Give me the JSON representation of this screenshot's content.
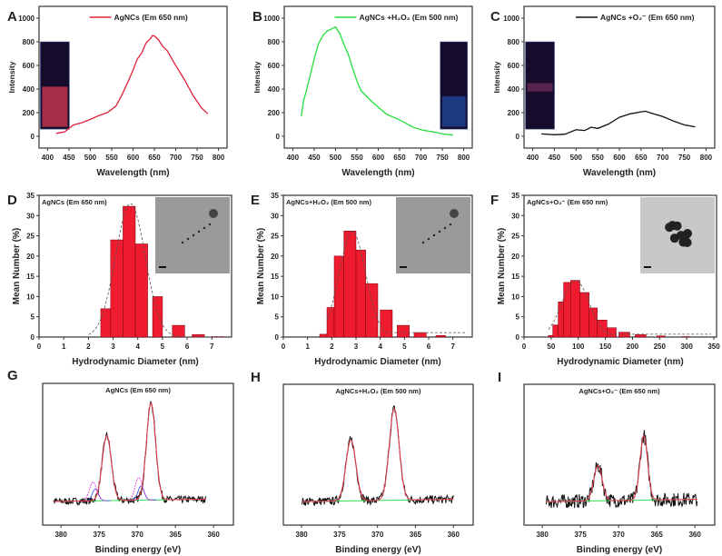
{
  "colors": {
    "red_curve": "#e0203a",
    "green_curve": "#22e03a",
    "black_curve": "#111111",
    "bar_fill": "#ee1c2e",
    "fit_red": "#e04050",
    "baseline_green": "#33dd55",
    "component_blue": "#3344dd",
    "component_magenta": "#dd33dd"
  },
  "chart_data": [
    {
      "panel": "A",
      "type": "line",
      "legend": "AgNCs (Em 650 nm)",
      "legend_placement": "top-center",
      "xlabel": "Wavelength (nm)",
      "ylabel": "Intensity",
      "xlim": [
        380,
        820
      ],
      "ylim": [
        -100,
        1100
      ],
      "xticks": [
        "400",
        "450",
        "500",
        "550",
        "600",
        "650",
        "700",
        "750",
        "800"
      ],
      "yticks": [
        "0",
        "200",
        "400",
        "600",
        "800",
        "1000"
      ],
      "color": "#e0203a",
      "inset": "red-vial-photo",
      "x": [
        420,
        440,
        460,
        480,
        500,
        520,
        540,
        560,
        575,
        590,
        600,
        610,
        620,
        630,
        640,
        645,
        650,
        660,
        670,
        680,
        700,
        720,
        740,
        760,
        775
      ],
      "y": [
        25,
        50,
        85,
        120,
        150,
        170,
        200,
        260,
        350,
        470,
        560,
        650,
        700,
        780,
        830,
        855,
        845,
        810,
        770,
        720,
        600,
        470,
        340,
        250,
        190
      ]
    },
    {
      "panel": "B",
      "type": "line",
      "legend": "AgNCs +H₂O₂ (Em 500 nm)",
      "legend_placement": "top-center",
      "xlabel": "Wavelength (nm)",
      "ylabel": "Intensity",
      "xlim": [
        380,
        820
      ],
      "ylim": [
        -100,
        1100
      ],
      "xticks": [
        "400",
        "450",
        "500",
        "550",
        "600",
        "650",
        "700",
        "750",
        "800"
      ],
      "yticks": [
        "0",
        "200",
        "400",
        "600",
        "800",
        "1000"
      ],
      "color": "#22e03a",
      "inset": "blue-vial-photo",
      "x": [
        420,
        425,
        430,
        440,
        450,
        460,
        470,
        480,
        490,
        500,
        510,
        520,
        530,
        540,
        550,
        560,
        580,
        600,
        620,
        650,
        680,
        700,
        730,
        750,
        775
      ],
      "y": [
        170,
        300,
        350,
        500,
        650,
        780,
        840,
        880,
        910,
        930,
        860,
        780,
        700,
        580,
        470,
        390,
        300,
        245,
        180,
        130,
        90,
        60,
        35,
        20,
        10
      ]
    },
    {
      "panel": "C",
      "type": "line",
      "legend": "AgNCs +O₂⁻ (Em 650 nm)",
      "legend_placement": "top-center",
      "xlabel": "Wavelength (nm)",
      "ylabel": "Intensity",
      "xlim": [
        380,
        820
      ],
      "ylim": [
        -100,
        1100
      ],
      "xticks": [
        "400",
        "450",
        "500",
        "550",
        "600",
        "650",
        "700",
        "750",
        "800"
      ],
      "yticks": [
        "0",
        "200",
        "400",
        "600",
        "800",
        "1000"
      ],
      "color": "#111111",
      "inset": "faint-red-vial-photo",
      "x": [
        420,
        450,
        475,
        500,
        520,
        535,
        550,
        575,
        600,
        625,
        650,
        660,
        675,
        700,
        725,
        750,
        775
      ],
      "y": [
        20,
        15,
        25,
        45,
        60,
        80,
        70,
        100,
        150,
        190,
        215,
        215,
        200,
        170,
        130,
        100,
        80
      ]
    },
    {
      "panel": "D",
      "type": "bar",
      "title": "AgNCs (Em 650 nm)",
      "xlabel": "Hydrodynamic Diameter (nm)",
      "ylabel": "Mean Number (%)",
      "xlim": [
        0,
        7.8
      ],
      "ylim": [
        0,
        35
      ],
      "xticks": [
        "0",
        "1",
        "2",
        "3",
        "4",
        "5",
        "6",
        "7"
      ],
      "yticks": [
        "0",
        "5",
        "10",
        "15",
        "20",
        "25",
        "30",
        "35"
      ],
      "inset": "TEM-image",
      "bins": [
        [
          2.5,
          2.9,
          7
        ],
        [
          2.9,
          3.4,
          24
        ],
        [
          3.4,
          3.9,
          32.3
        ],
        [
          3.9,
          4.4,
          23
        ],
        [
          4.6,
          5.0,
          10
        ],
        [
          5.4,
          5.9,
          2.9
        ],
        [
          6.2,
          6.7,
          0.6
        ],
        [
          7.0,
          7.5,
          0.1
        ]
      ],
      "fit": {
        "center": 3.7,
        "width": 0.6,
        "height": 33,
        "baseline": 0,
        "from": 2.0,
        "to": 7.5
      }
    },
    {
      "panel": "E",
      "type": "bar",
      "title": "AgNCs+H₂O₂ (Em 500 nm)",
      "xlabel": "Hydrodynamic Diameter (nm)",
      "ylabel": "Mean Number (%)",
      "xlim": [
        0,
        7.8
      ],
      "ylim": [
        0,
        35
      ],
      "xticks": [
        "0",
        "1",
        "2",
        "3",
        "4",
        "5",
        "6",
        "7"
      ],
      "yticks": [
        "0",
        "5",
        "10",
        "15",
        "20",
        "25",
        "30",
        "35"
      ],
      "inset": "TEM-image",
      "bins": [
        [
          1.5,
          1.8,
          0.7
        ],
        [
          1.8,
          2.1,
          7.3
        ],
        [
          2.1,
          2.5,
          20
        ],
        [
          2.5,
          3.0,
          26.2
        ],
        [
          3.0,
          3.4,
          21.5
        ],
        [
          3.4,
          3.9,
          13.2
        ],
        [
          4.0,
          4.5,
          6.7
        ],
        [
          4.7,
          5.2,
          2.9
        ],
        [
          5.4,
          5.9,
          1.1
        ],
        [
          6.3,
          6.7,
          0.4
        ]
      ],
      "fit": {
        "center": 2.85,
        "width": 0.55,
        "height": 26,
        "baseline": 1.1,
        "from": 1.8,
        "to": 7.5
      }
    },
    {
      "panel": "F",
      "type": "bar",
      "title": "AgNCs+O₂⁻ (Em 650 nm)",
      "xlabel": "Hydrodynamic Diameter (nm)",
      "ylabel": "Mean Number (%)",
      "xlim": [
        0,
        355
      ],
      "ylim": [
        0,
        35
      ],
      "xticks": [
        "0",
        "50",
        "100",
        "150",
        "200",
        "250",
        "300",
        "350"
      ],
      "yticks": [
        "0",
        "5",
        "10",
        "15",
        "20",
        "25",
        "30",
        "35"
      ],
      "inset": "TEM-image-aggregate",
      "bins": [
        [
          45,
          53,
          0.4
        ],
        [
          53,
          63,
          3
        ],
        [
          63,
          73,
          8.7
        ],
        [
          73,
          86,
          13.5
        ],
        [
          86,
          103,
          14
        ],
        [
          103,
          120,
          11
        ],
        [
          120,
          135,
          7.2
        ],
        [
          135,
          153,
          4.2
        ],
        [
          153,
          170,
          2.3
        ],
        [
          175,
          195,
          1.2
        ],
        [
          205,
          225,
          0.6
        ],
        [
          245,
          260,
          0.3
        ],
        [
          290,
          305,
          0.1
        ]
      ],
      "fit": {
        "center": 95,
        "width": 25,
        "height": 14,
        "baseline": 0.7,
        "from": 45,
        "to": 345
      }
    },
    {
      "panel": "G",
      "type": "line",
      "title": "AgNCs (Em 650 nm)",
      "xlabel": "Binding energy (eV)",
      "xlim": [
        382.4,
        357.4
      ],
      "ylim": [
        -0.2,
        1.0
      ],
      "xticks": [
        "380",
        "375",
        "370",
        "365",
        "360"
      ],
      "data_range": [
        381,
        361
      ],
      "peaks": [
        {
          "center": 374.0,
          "height": 0.55,
          "width": 0.6
        },
        {
          "center": 368.2,
          "height": 0.82,
          "width": 0.6
        }
      ],
      "components": [
        {
          "center": 375.5,
          "height": 0.1,
          "width": 0.4
        },
        {
          "center": 369.5,
          "height": 0.12,
          "width": 0.4
        }
      ],
      "noise": 0.03
    },
    {
      "panel": "H",
      "type": "line",
      "title": "AgNCs+H₂O₂ (Em 500 nm)",
      "xlabel": "Binding energy (eV)",
      "xlim": [
        382.4,
        357.4
      ],
      "ylim": [
        -0.2,
        1.0
      ],
      "xticks": [
        "380",
        "375",
        "370",
        "365",
        "360"
      ],
      "data_range": [
        380,
        360
      ],
      "peaks": [
        {
          "center": 373.5,
          "height": 0.52,
          "width": 0.65
        },
        {
          "center": 367.8,
          "height": 0.78,
          "width": 0.65
        }
      ],
      "components": [],
      "noise": 0.035
    },
    {
      "panel": "I",
      "type": "line",
      "title": "AgNCs+O₂⁻ (Em 650 nm)",
      "xlabel": "Binding energy (eV)",
      "xlim": [
        382.4,
        357.4
      ],
      "ylim": [
        -0.2,
        1.0
      ],
      "xticks": [
        "380",
        "375",
        "370",
        "365",
        "360"
      ],
      "data_range": [
        379.5,
        359.7
      ],
      "peaks": [
        {
          "center": 372.7,
          "height": 0.3,
          "width": 0.55
        },
        {
          "center": 366.7,
          "height": 0.55,
          "width": 0.5
        }
      ],
      "components": [],
      "noise": 0.06
    }
  ]
}
